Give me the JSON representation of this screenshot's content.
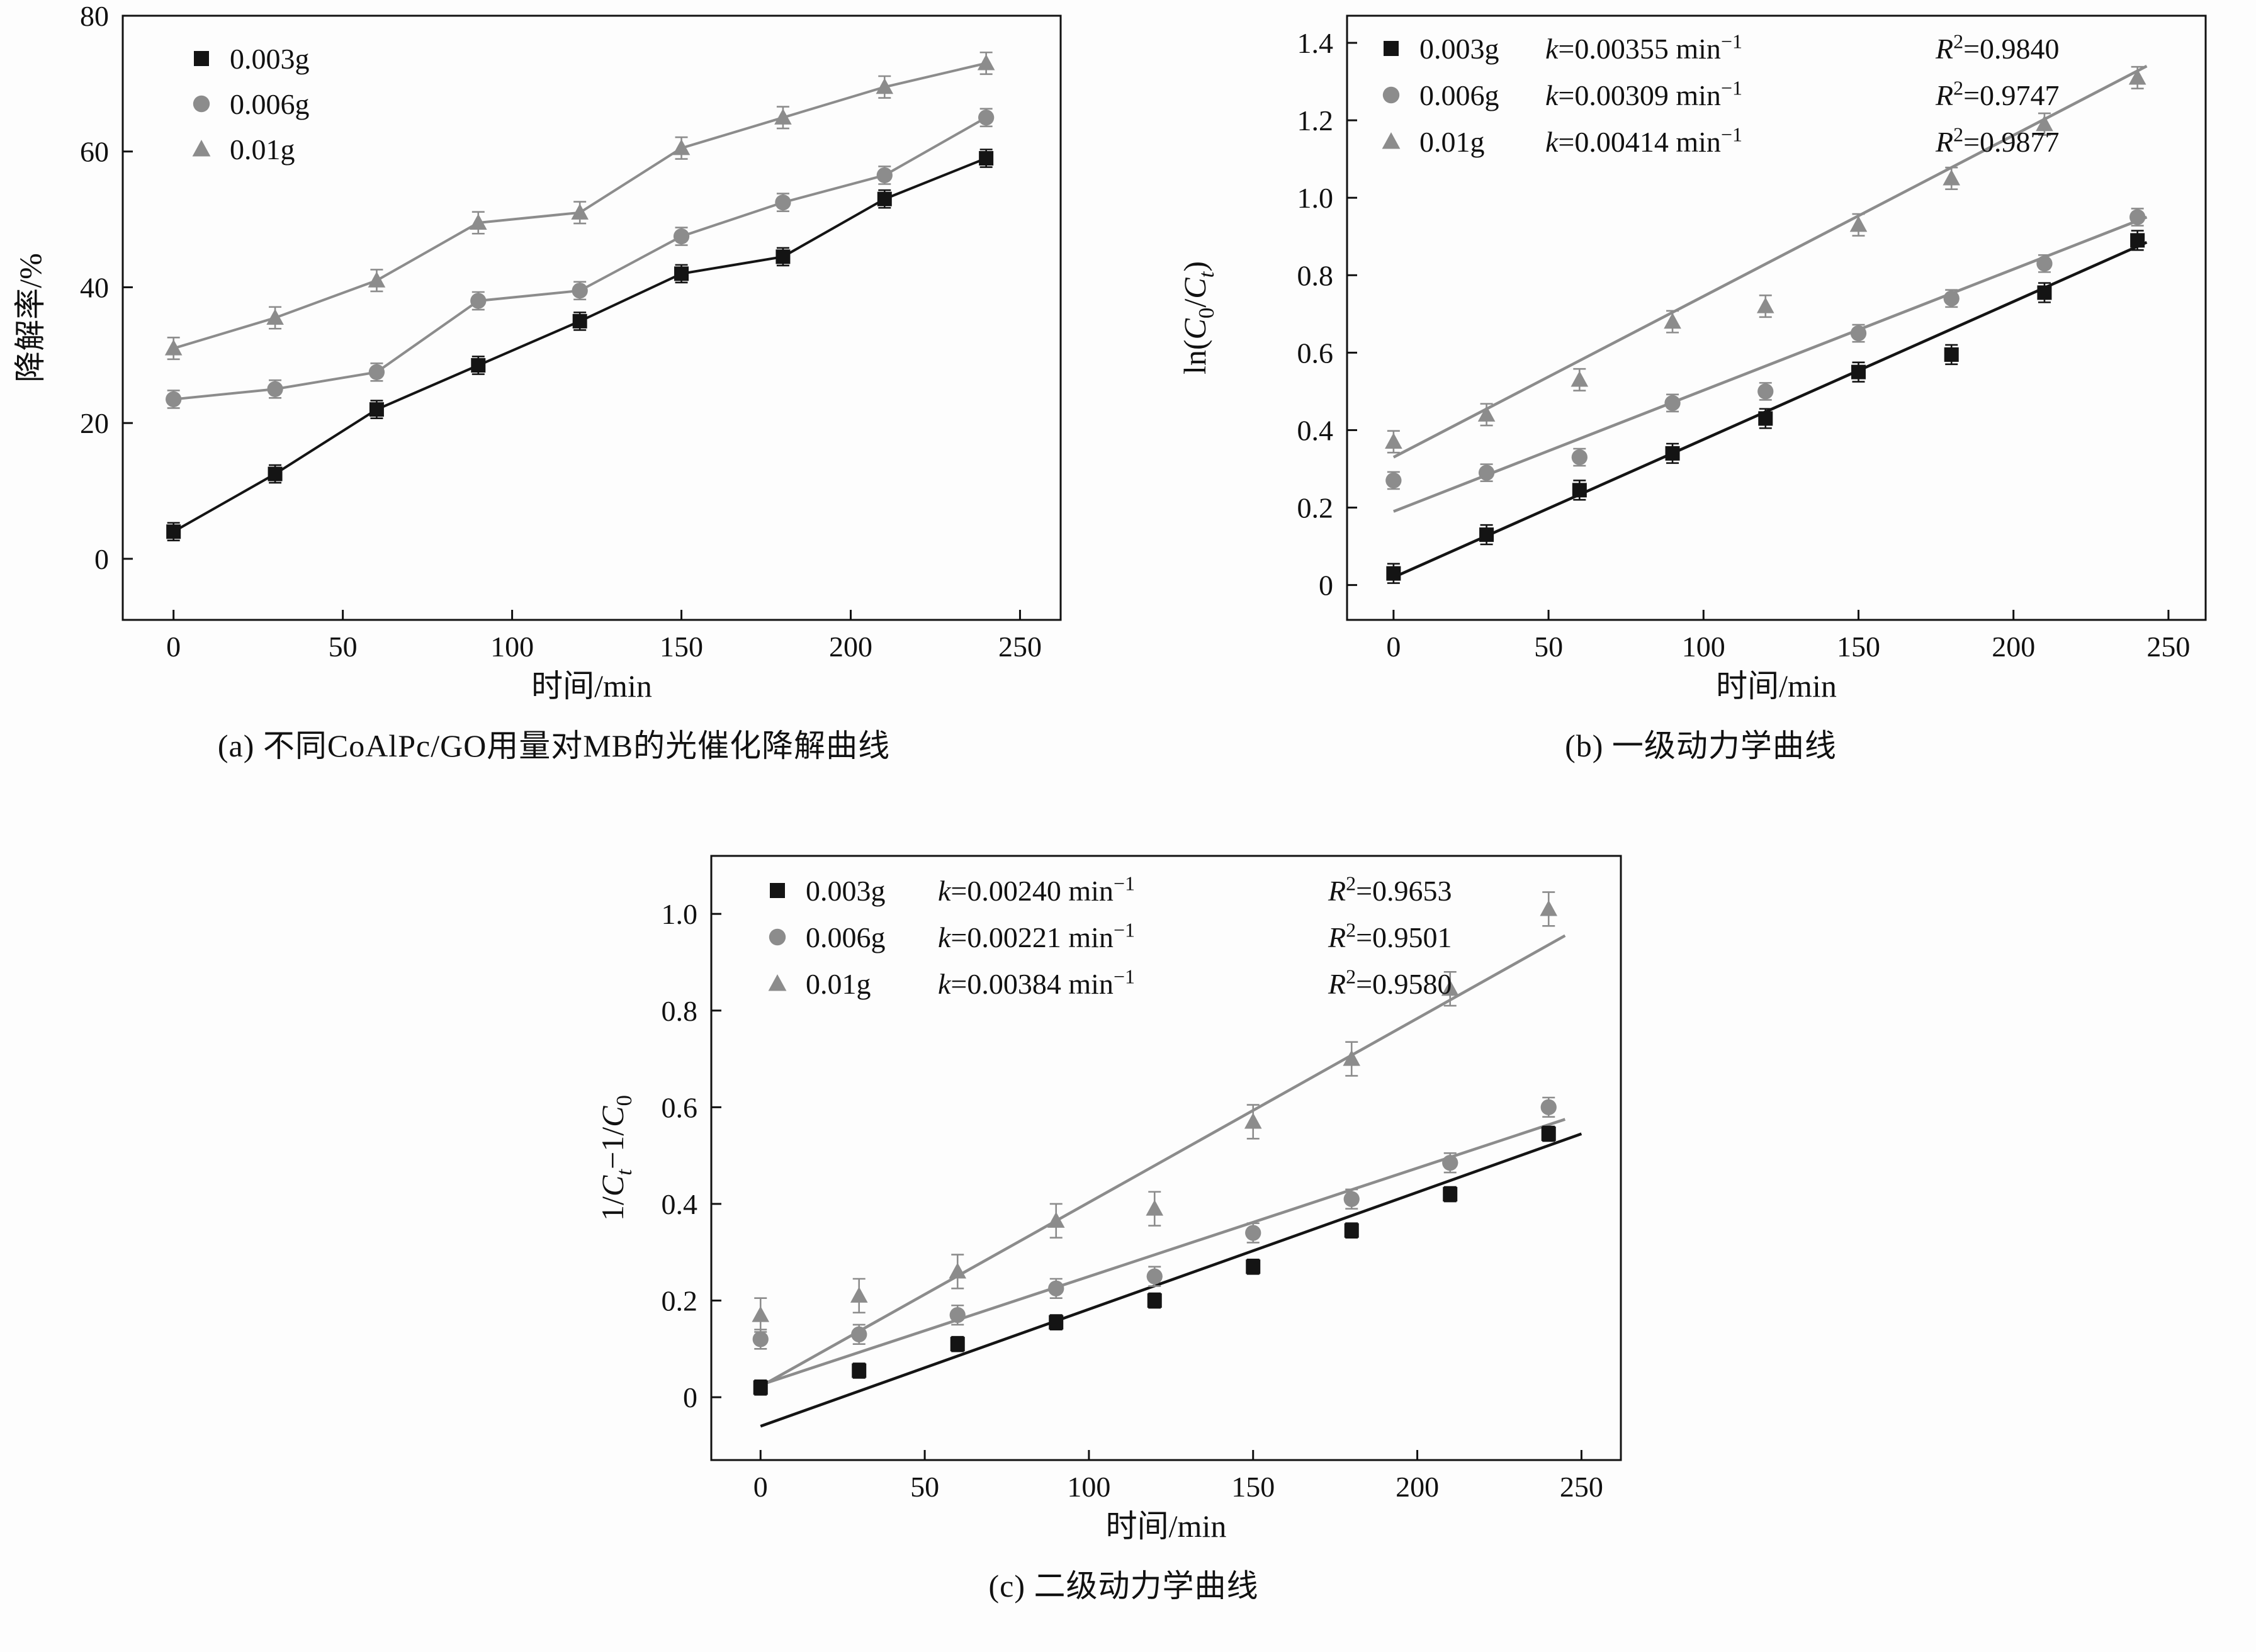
{
  "figure": {
    "captions": {
      "a": "(a) 不同CoAlPc/GO用量对MB的光催化降解曲线",
      "b": "(b) 一级动力学曲线",
      "c": "(c) 二级动力学曲线"
    }
  },
  "colors": {
    "black": "#141414",
    "gray": "#8c8c8c"
  },
  "chart_data": [
    {
      "id": "a",
      "type": "line",
      "title": "",
      "xlabel": "时间/min",
      "ylabel_tokens": [
        {
          "t": "降解率/%"
        }
      ],
      "xlim": [
        -15,
        262
      ],
      "ylim": [
        -9,
        80
      ],
      "xticks": [
        0,
        50,
        100,
        150,
        200,
        250
      ],
      "xtick_labels": [
        "0",
        "50",
        "100",
        "150",
        "200",
        "250"
      ],
      "yticks": [
        0,
        20,
        40,
        60,
        80
      ],
      "ytick_labels": [
        "0",
        "20",
        "40",
        "60",
        "80"
      ],
      "grid": false,
      "legend_position": "top-left",
      "x": [
        0,
        30,
        60,
        90,
        120,
        150,
        180,
        210,
        240
      ],
      "series": [
        {
          "name": "0.003g",
          "marker": "square",
          "color": "black",
          "connect": true,
          "err": 1.3,
          "values": [
            4,
            12.5,
            22,
            28.5,
            35,
            42,
            44.5,
            53,
            59
          ]
        },
        {
          "name": "0.006g",
          "marker": "circle",
          "color": "gray",
          "connect": true,
          "err": 1.3,
          "values": [
            23.5,
            25,
            27.5,
            38,
            39.5,
            47.5,
            52.5,
            56.5,
            65
          ]
        },
        {
          "name": "0.01g",
          "marker": "triangle",
          "color": "gray",
          "connect": true,
          "err": 1.6,
          "values": [
            31,
            35.5,
            41,
            49.5,
            51,
            60.5,
            65,
            69.5,
            73
          ]
        }
      ],
      "legend": [
        {
          "label": "0.003g"
        },
        {
          "label": "0.006g"
        },
        {
          "label": "0.01g"
        }
      ]
    },
    {
      "id": "b",
      "type": "scatter",
      "title": "",
      "xlabel": "时间/min",
      "ylabel_tokens": [
        {
          "t": "ln("
        },
        {
          "t": "C",
          "i": true
        },
        {
          "t": "0",
          "s": "sub"
        },
        {
          "t": "/"
        },
        {
          "t": "C",
          "i": true
        },
        {
          "t": "t",
          "s": "sub",
          "i": true
        },
        {
          "t": ")"
        }
      ],
      "xlim": [
        -15,
        262
      ],
      "ylim": [
        -0.09,
        1.47
      ],
      "xticks": [
        0,
        50,
        100,
        150,
        200,
        250
      ],
      "xtick_labels": [
        "0",
        "50",
        "100",
        "150",
        "200",
        "250"
      ],
      "yticks": [
        0,
        0.2,
        0.4,
        0.6,
        0.8,
        1.0,
        1.2,
        1.4
      ],
      "ytick_labels": [
        "0",
        "0.2",
        "0.4",
        "0.6",
        "0.8",
        "1.0",
        "1.2",
        "1.4"
      ],
      "grid": false,
      "legend_position": "top-left",
      "x": [
        0,
        30,
        60,
        90,
        120,
        150,
        180,
        210,
        240
      ],
      "series": [
        {
          "name": "0.003g",
          "marker": "square",
          "color": "black",
          "err": 0.025,
          "values": [
            0.03,
            0.13,
            0.245,
            0.34,
            0.43,
            0.55,
            0.595,
            0.755,
            0.89
          ],
          "fit": {
            "x1": 0,
            "y1": 0.02,
            "x2": 243,
            "y2": 0.885
          }
        },
        {
          "name": "0.006g",
          "marker": "circle",
          "color": "gray",
          "err": 0.022,
          "values": [
            0.27,
            0.29,
            0.33,
            0.47,
            0.5,
            0.65,
            0.74,
            0.83,
            0.95
          ],
          "fit": {
            "x1": 0,
            "y1": 0.19,
            "x2": 243,
            "y2": 0.95
          }
        },
        {
          "name": "0.01g",
          "marker": "triangle",
          "color": "gray",
          "err": 0.028,
          "values": [
            0.37,
            0.44,
            0.53,
            0.68,
            0.72,
            0.93,
            1.05,
            1.19,
            1.31
          ],
          "fit": {
            "x1": 0,
            "y1": 0.33,
            "x2": 243,
            "y2": 1.34
          }
        }
      ],
      "legend": [
        {
          "label": "0.003g",
          "k": "0.00355",
          "r2": "0.9840"
        },
        {
          "label": "0.006g",
          "k": "0.00309",
          "r2": "0.9747"
        },
        {
          "label": "0.01g",
          "k": "0.00414",
          "r2": "0.9877"
        }
      ]
    },
    {
      "id": "c",
      "type": "scatter",
      "title": "",
      "xlabel": "时间/min",
      "ylabel_tokens": [
        {
          "t": "1/"
        },
        {
          "t": "C",
          "i": true
        },
        {
          "t": "t",
          "s": "sub",
          "i": true
        },
        {
          "t": "−1/"
        },
        {
          "t": "C",
          "i": true
        },
        {
          "t": "0",
          "s": "sub"
        }
      ],
      "xlim": [
        -15,
        262
      ],
      "ylim": [
        -0.13,
        1.12
      ],
      "xticks": [
        0,
        50,
        100,
        150,
        200,
        250
      ],
      "xtick_labels": [
        "0",
        "50",
        "100",
        "150",
        "200",
        "250"
      ],
      "yticks": [
        0,
        0.2,
        0.4,
        0.6,
        0.8,
        1.0
      ],
      "ytick_labels": [
        "0",
        "0.2",
        "0.4",
        "0.6",
        "0.8",
        "1.0"
      ],
      "grid": false,
      "legend_position": "top-left",
      "x": [
        0,
        30,
        60,
        90,
        120,
        150,
        180,
        210,
        240
      ],
      "series": [
        {
          "name": "0.003g",
          "marker": "square",
          "color": "black",
          "err": 0.015,
          "values": [
            0.02,
            0.055,
            0.11,
            0.155,
            0.2,
            0.27,
            0.345,
            0.42,
            0.545
          ],
          "fit": {
            "x1": 0,
            "y1": -0.06,
            "x2": 250,
            "y2": 0.545
          }
        },
        {
          "name": "0.006g",
          "marker": "circle",
          "color": "gray",
          "err": 0.02,
          "values": [
            0.12,
            0.13,
            0.17,
            0.225,
            0.25,
            0.34,
            0.41,
            0.485,
            0.6
          ],
          "fit": {
            "x1": 2,
            "y1": 0.03,
            "x2": 245,
            "y2": 0.575
          }
        },
        {
          "name": "0.01g",
          "marker": "triangle",
          "color": "gray",
          "err": 0.035,
          "values": [
            0.17,
            0.21,
            0.26,
            0.365,
            0.39,
            0.57,
            0.7,
            0.845,
            1.01
          ],
          "fit": {
            "x1": 2,
            "y1": 0.03,
            "x2": 245,
            "y2": 0.955
          }
        }
      ],
      "legend": [
        {
          "label": "0.003g",
          "k": "0.00240",
          "r2": "0.9653"
        },
        {
          "label": "0.006g",
          "k": "0.00221",
          "r2": "0.9501"
        },
        {
          "label": "0.01g",
          "k": "0.00384",
          "r2": "0.9580"
        }
      ]
    }
  ]
}
